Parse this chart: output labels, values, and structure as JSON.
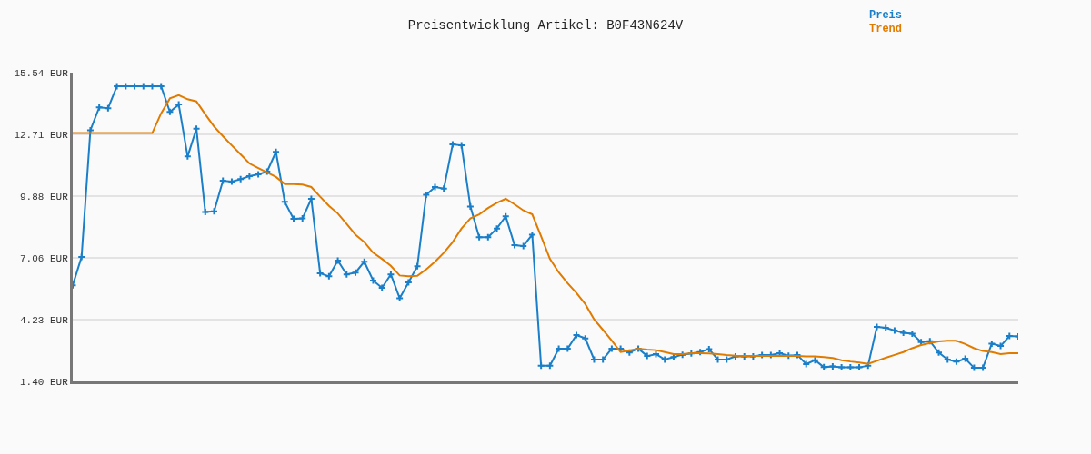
{
  "chart_data": {
    "type": "line",
    "title": "Preisentwicklung Artikel: B0F43N624V",
    "categories": [
      null,
      null,
      null,
      null,
      null,
      null,
      null,
      null,
      null,
      null,
      null,
      null,
      null,
      null,
      null,
      null,
      null,
      null,
      null,
      null,
      null,
      null,
      null,
      null,
      null,
      null,
      null,
      null,
      null,
      null,
      null,
      null,
      null,
      null,
      null,
      null,
      null,
      null,
      null,
      null,
      null,
      null,
      null,
      null,
      null,
      null,
      null,
      null,
      null,
      null,
      null,
      null,
      null,
      null,
      null,
      null,
      null,
      null,
      null,
      null,
      null,
      null,
      null,
      null,
      null,
      null,
      null,
      null,
      null,
      null,
      null,
      null,
      null,
      null,
      null,
      null,
      null,
      null,
      null,
      null,
      null,
      null,
      null,
      null,
      null,
      null,
      null,
      null,
      null,
      null,
      null,
      null,
      null,
      null,
      null,
      null,
      null,
      null,
      null,
      null,
      null,
      null,
      null,
      null,
      null,
      null,
      null,
      null
    ],
    "series": [
      {
        "name": "Preis",
        "color": "#1a7fc8",
        "marker": "cross",
        "values": [
          5.8,
          7.1,
          12.9,
          13.95,
          13.91,
          14.92,
          14.92,
          14.92,
          14.92,
          14.92,
          14.92,
          13.74,
          14.08,
          11.7,
          12.97,
          9.16,
          9.19,
          10.59,
          10.55,
          10.66,
          10.8,
          10.88,
          11.01,
          11.91,
          9.62,
          8.84,
          8.86,
          9.76,
          6.35,
          6.21,
          6.93,
          6.3,
          6.38,
          6.88,
          6.02,
          5.68,
          6.3,
          5.21,
          5.93,
          6.67,
          9.95,
          10.3,
          10.23,
          12.25,
          12.21,
          9.41,
          8.0,
          8.0,
          8.4,
          8.96,
          7.64,
          7.6,
          8.12,
          2.12,
          2.12,
          2.9,
          2.9,
          3.52,
          3.37,
          2.4,
          2.4,
          2.9,
          2.9,
          2.72,
          2.9,
          2.56,
          2.65,
          2.4,
          2.51,
          2.62,
          2.68,
          2.74,
          2.88,
          2.4,
          2.4,
          2.54,
          2.54,
          2.54,
          2.61,
          2.61,
          2.69,
          2.58,
          2.61,
          2.19,
          2.37,
          2.05,
          2.09,
          2.04,
          2.04,
          2.04,
          2.12,
          3.9,
          3.85,
          3.73,
          3.62,
          3.58,
          3.2,
          3.24,
          2.72,
          2.4,
          2.3,
          2.44,
          2.02,
          2.02,
          3.13,
          3.02,
          3.48,
          3.46
        ]
      },
      {
        "name": "Trend",
        "color": "#e07b00",
        "marker": "none",
        "values": [
          12.77,
          12.77,
          12.77,
          12.77,
          12.77,
          12.77,
          12.77,
          12.77,
          12.77,
          12.77,
          13.67,
          14.36,
          14.51,
          14.32,
          14.22,
          13.63,
          13.07,
          12.63,
          12.21,
          11.8,
          11.38,
          11.17,
          10.97,
          10.76,
          10.44,
          10.44,
          10.41,
          10.3,
          9.86,
          9.44,
          9.09,
          8.61,
          8.12,
          7.78,
          7.29,
          7.01,
          6.69,
          6.25,
          6.21,
          6.23,
          6.53,
          6.88,
          7.29,
          7.78,
          8.4,
          8.86,
          9.05,
          9.34,
          9.58,
          9.76,
          9.51,
          9.23,
          9.05,
          8.05,
          7.01,
          6.39,
          5.9,
          5.45,
          4.94,
          4.24,
          3.76,
          3.27,
          2.74,
          2.81,
          2.9,
          2.86,
          2.83,
          2.74,
          2.65,
          2.65,
          2.69,
          2.69,
          2.68,
          2.65,
          2.61,
          2.58,
          2.56,
          2.56,
          2.56,
          2.56,
          2.56,
          2.56,
          2.56,
          2.54,
          2.54,
          2.51,
          2.47,
          2.37,
          2.31,
          2.26,
          2.2,
          2.34,
          2.48,
          2.61,
          2.74,
          2.92,
          3.06,
          3.16,
          3.23,
          3.26,
          3.26,
          3.11,
          2.92,
          2.79,
          2.74,
          2.65,
          2.69,
          2.69
        ]
      }
    ],
    "ylim": [
      1.4,
      15.54
    ],
    "yticks": [
      {
        "value": 1.4,
        "label": "1.40 EUR"
      },
      {
        "value": 4.23,
        "label": "4.23 EUR"
      },
      {
        "value": 7.06,
        "label": "7.06 EUR"
      },
      {
        "value": 9.88,
        "label": "9.88 EUR"
      },
      {
        "value": 12.71,
        "label": "12.71 EUR"
      },
      {
        "value": 15.54,
        "label": "15.54 EUR"
      }
    ],
    "grid": "y",
    "legend": "top right",
    "tick_labels": "y"
  }
}
